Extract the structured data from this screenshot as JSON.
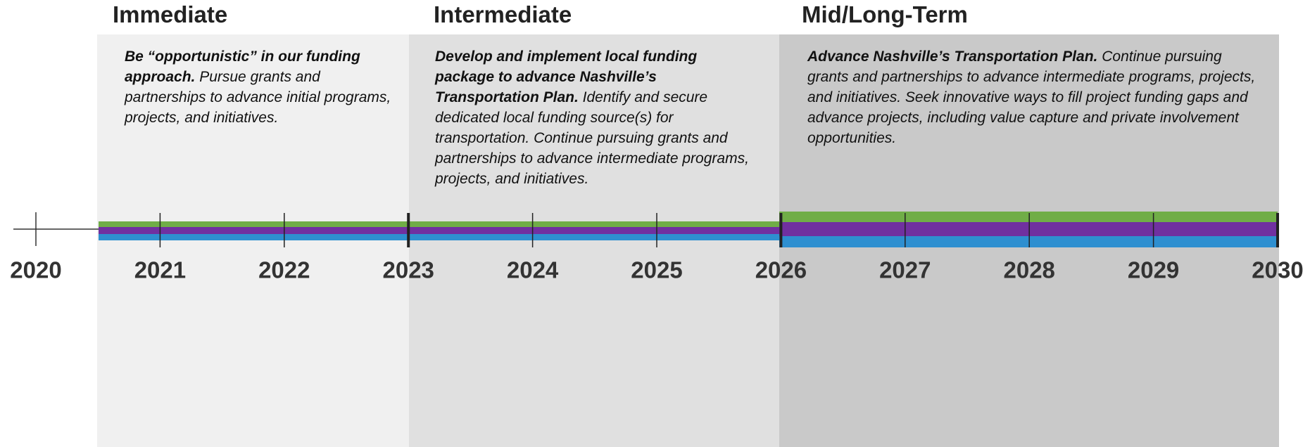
{
  "phases": [
    {
      "title": "Immediate",
      "lead": "Be “opportunistic” in our funding approach.",
      "text": "Pursue grants and partnerships to advance initial programs, projects, and initiatives."
    },
    {
      "title": "Intermediate",
      "lead": "Develop and implement local funding package to advance Nashville’s Transportation Plan.",
      "text": "Identify and secure dedicated local funding source(s) for transportation. Continue pursuing grants and partnerships to advance intermediate programs, projects, and initiatives."
    },
    {
      "title": "Mid/Long-Term",
      "lead": "Advance Nashville’s Transportation Plan.",
      "text": "Continue pursuing grants and partnerships to advance intermediate programs, projects, and initiatives. Seek innovative ways to fill project funding gaps and advance projects, including value capture and private involvement opportunities."
    }
  ],
  "years": [
    2020,
    2021,
    2022,
    2023,
    2024,
    2025,
    2026,
    2027,
    2028,
    2029,
    2030
  ]
}
